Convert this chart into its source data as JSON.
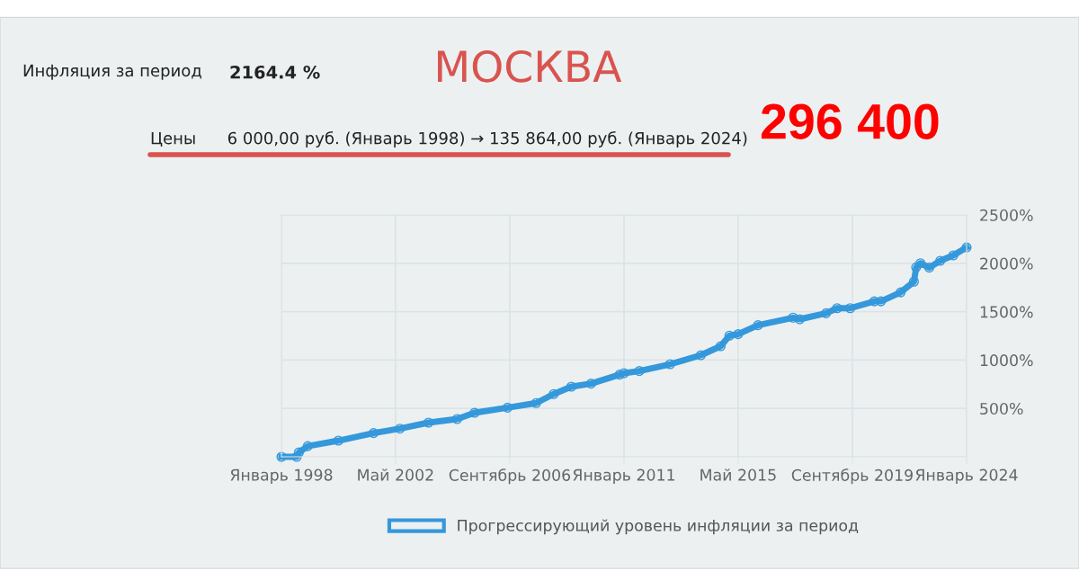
{
  "chart_data": {
    "type": "line",
    "title": "МОСКВА",
    "annotations": [
      "Инфляция за период",
      "2164.4 %",
      "Цены      6 000,00 руб. (Январь 1998) → 135 864,00 руб. (Январь 2024)",
      "296 400"
    ],
    "x": [
      "1998-01",
      "1998-08",
      "1998-09",
      "1999-01",
      "2000-03",
      "2001-07",
      "2002-07",
      "2003-08",
      "2004-09",
      "2005-05",
      "2006-08",
      "2007-09",
      "2008-05",
      "2009-01",
      "2009-10",
      "2010-11",
      "2011-01",
      "2011-08",
      "2012-10",
      "2013-12",
      "2014-09",
      "2015-01",
      "2015-05",
      "2016-02",
      "2017-06",
      "2017-09",
      "2018-09",
      "2019-02",
      "2019-08",
      "2020-07",
      "2020-10",
      "2021-07",
      "2022-01",
      "2022-02",
      "2022-04",
      "2022-08",
      "2023-01",
      "2023-07",
      "2024-01"
    ],
    "series": [
      {
        "name": "Прогрессирующий уровень инфляции за период",
        "color": "#3498db",
        "values": [
          0,
          0,
          46,
          110,
          167,
          245,
          291,
          353,
          390,
          455,
          508,
          555,
          648,
          725,
          756,
          849,
          864,
          886,
          957,
          1050,
          1143,
          1252,
          1267,
          1360,
          1438,
          1422,
          1484,
          1536,
          1536,
          1607,
          1607,
          1700,
          1810,
          1958,
          2001,
          1955,
          2026,
          2082,
          2164.4
        ]
      }
    ],
    "xlim": [
      "1998-01",
      "2024-01"
    ],
    "xticks": [
      {
        "value": "1998-01",
        "label": "Январь 1998"
      },
      {
        "value": "2002-05",
        "label": "Май 2002"
      },
      {
        "value": "2006-09",
        "label": "Сентябрь 2006"
      },
      {
        "value": "2011-01",
        "label": "Январь 2011"
      },
      {
        "value": "2015-05",
        "label": "Май 2015"
      },
      {
        "value": "2019-09",
        "label": "Сентябрь 2019"
      },
      {
        "value": "2024-01",
        "label": "Январь 2024"
      }
    ],
    "ylim": [
      0,
      2500
    ],
    "yticks": [
      {
        "value": 0,
        "label": null
      },
      {
        "value": 500,
        "label": "500%"
      },
      {
        "value": 1000,
        "label": "1000%"
      },
      {
        "value": 1500,
        "label": "1500%"
      },
      {
        "value": 2000,
        "label": "2000%"
      },
      {
        "value": 2500,
        "label": "2500%"
      }
    ],
    "grid": true,
    "legend": "bottom",
    "marker": "circle",
    "line_style": "solid"
  }
}
